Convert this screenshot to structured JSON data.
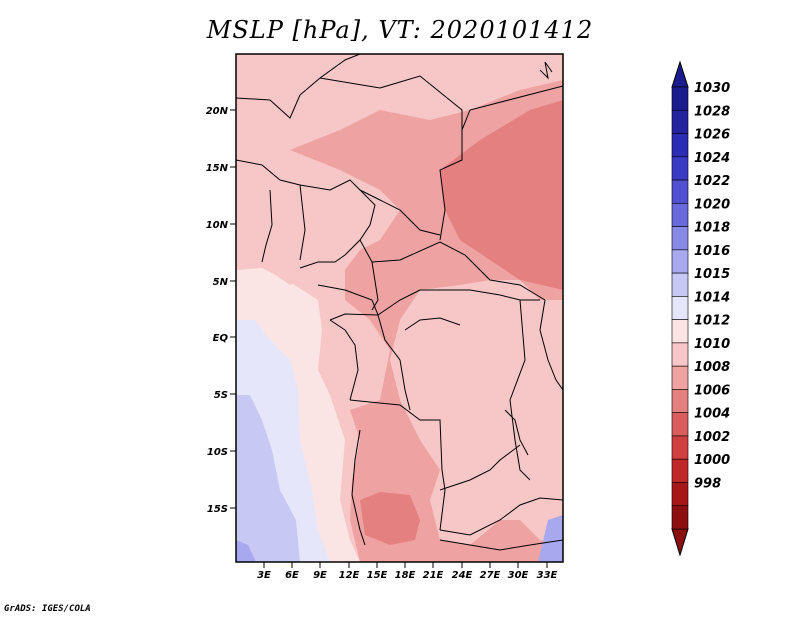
{
  "title": "MSLP [hPa], VT: 2020101412",
  "footer": "GrADS: IGES/COLA",
  "map": {
    "lat_ticks": [
      "20N",
      "15N",
      "10N",
      "5N",
      "EQ",
      "5S",
      "10S",
      "15S"
    ],
    "lon_ticks": [
      "3E",
      "6E",
      "9E",
      "12E",
      "15E",
      "18E",
      "21E",
      "24E",
      "27E",
      "30E",
      "33E"
    ]
  },
  "colorbar": {
    "levels": [
      "1030",
      "1028",
      "1026",
      "1024",
      "1022",
      "1020",
      "1018",
      "1016",
      "1015",
      "1014",
      "1012",
      "1010",
      "1008",
      "1006",
      "1004",
      "1002",
      "1000",
      "998"
    ],
    "colors": [
      "#1a1b8c",
      "#2323a0",
      "#2c2cb4",
      "#3a3ac4",
      "#5050d0",
      "#6a6adc",
      "#8888e6",
      "#a8a8ef",
      "#c8c8f5",
      "#e6e6fb",
      "#fbe4e4",
      "#f7c6c6",
      "#eea2a2",
      "#e48080",
      "#da5e5e",
      "#d04040",
      "#c02828",
      "#a81818",
      "#8c1010"
    ],
    "top_color": "#1a1b8c",
    "bottom_color": "#8c1010"
  },
  "fills": {
    "ocean_far": "#c8c8f5",
    "ocean_mid": "#e6e6fb",
    "ocean_near": "#ffffff",
    "coast": "#fbe4e4",
    "land_light": "#f7c6c6",
    "land": "#eea2a2",
    "land_dark": "#e48080",
    "bluecorner": "#a8a8ef"
  }
}
